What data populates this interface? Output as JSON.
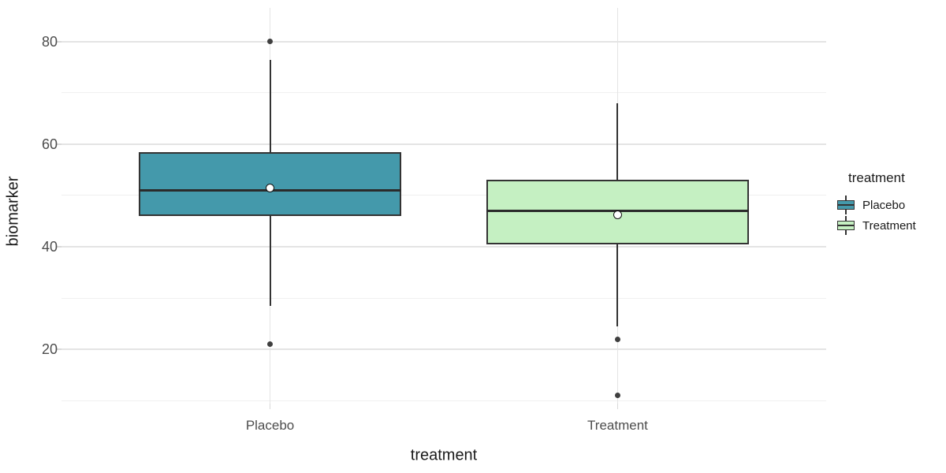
{
  "figure": {
    "background": "#ffffff",
    "text_colors": {
      "tick_labels": "#4d4d4d",
      "titles": "#1a1a1a"
    },
    "y_axis": {
      "title": "biomarker",
      "ticks": [
        20,
        40,
        60,
        80
      ],
      "minor_ticks": [
        10,
        30,
        50,
        70
      ]
    },
    "x_axis": {
      "title": "treatment",
      "categories": [
        "Placebo",
        "Treatment"
      ]
    },
    "legend": {
      "title": "treatment",
      "items": [
        {
          "label": "Placebo",
          "color": "#4499ab"
        },
        {
          "label": "Treatment",
          "color": "#c5f0c2"
        }
      ]
    }
  },
  "chart_data": {
    "type": "boxplot",
    "title": "",
    "xlabel": "treatment",
    "ylabel": "biomarker",
    "categories": [
      "Placebo",
      "Treatment"
    ],
    "y_ticks": [
      20,
      40,
      60,
      80
    ],
    "ylim": [
      9.4,
      86.6
    ],
    "grid": "on",
    "legend_position": "right",
    "series": [
      {
        "name": "Placebo",
        "fill": "#4499ab",
        "whisker_low": 28.5,
        "q1": 46,
        "median": 51,
        "q3": 58.5,
        "whisker_high": 76.5,
        "mean": 51.5,
        "outliers": [
          80,
          21
        ]
      },
      {
        "name": "Treatment",
        "fill": "#c5f0c2",
        "whisker_low": 24.5,
        "q1": 40.5,
        "median": 47,
        "q3": 53,
        "whisker_high": 68,
        "mean": 46.2,
        "outliers": [
          22,
          11
        ]
      }
    ],
    "style": {
      "box_border": "#333333",
      "median_color": "#2b2b2b",
      "outlier_color": "#3f3f3f",
      "mean_fill": "#ffffff",
      "mean_border": "#111111",
      "grid_major": "#e4e4e4",
      "grid_minor": "#f0f0f0",
      "tick_mark": "#d9d9d9"
    }
  }
}
